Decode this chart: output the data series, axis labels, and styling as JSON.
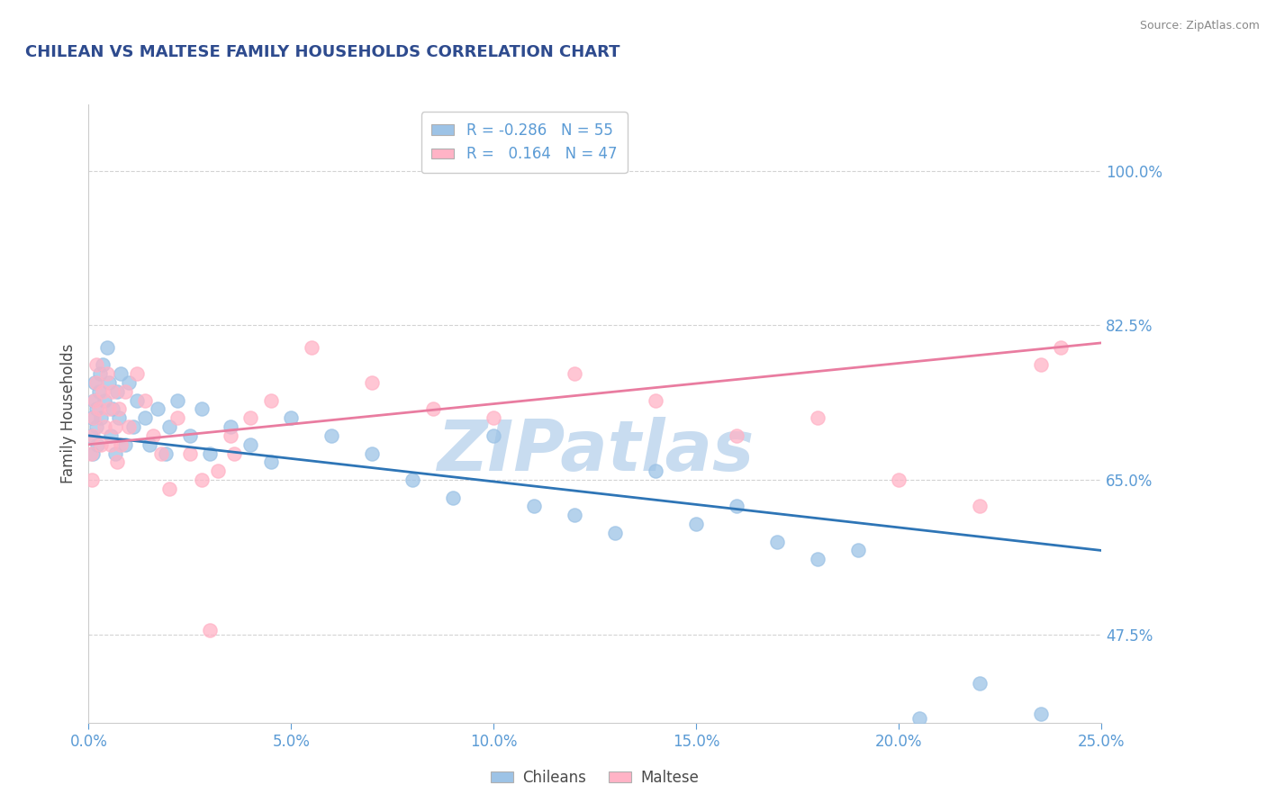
{
  "title": "CHILEAN VS MALTESE FAMILY HOUSEHOLDS CORRELATION CHART",
  "source_text": "Source: ZipAtlas.com",
  "ylabel": "Family Households",
  "xlabel_chileans": "Chileans",
  "xlabel_maltese": "Maltese",
  "legend_blue_R": "-0.286",
  "legend_blue_N": "55",
  "legend_pink_R": "0.164",
  "legend_pink_N": "47",
  "title_color": "#2E4B8E",
  "source_color": "#888888",
  "axis_label_color": "#4a4a4a",
  "tick_color": "#5B9BD5",
  "grid_color": "#c8c8c8",
  "blue_dot_color": "#9DC3E6",
  "pink_dot_color": "#FFB3C6",
  "blue_line_color": "#2E75B6",
  "pink_line_color": "#E97CA0",
  "watermark_color": "#DDEEFF",
  "xlim": [
    0.0,
    25.0
  ],
  "ylim": [
    37.5,
    107.5
  ],
  "yticks": [
    47.5,
    65.0,
    82.5,
    100.0
  ],
  "xticks": [
    0.0,
    5.0,
    10.0,
    15.0,
    20.0,
    25.0
  ],
  "blue_x": [
    0.05,
    0.08,
    0.1,
    0.12,
    0.15,
    0.18,
    0.2,
    0.22,
    0.25,
    0.28,
    0.3,
    0.35,
    0.4,
    0.45,
    0.5,
    0.55,
    0.6,
    0.65,
    0.7,
    0.75,
    0.8,
    0.9,
    1.0,
    1.1,
    1.2,
    1.4,
    1.5,
    1.7,
    1.9,
    2.0,
    2.2,
    2.5,
    2.8,
    3.0,
    3.5,
    4.0,
    4.5,
    5.0,
    6.0,
    7.0,
    8.0,
    9.0,
    10.0,
    11.0,
    12.0,
    13.0,
    14.0,
    15.0,
    16.0,
    17.0,
    18.0,
    19.0,
    20.5,
    22.0,
    23.5
  ],
  "blue_y": [
    70.0,
    72.0,
    68.0,
    74.0,
    76.0,
    71.0,
    73.0,
    69.0,
    75.0,
    77.0,
    72.0,
    78.0,
    74.0,
    80.0,
    76.0,
    70.0,
    73.0,
    68.0,
    75.0,
    72.0,
    77.0,
    69.0,
    76.0,
    71.0,
    74.0,
    72.0,
    69.0,
    73.0,
    68.0,
    71.0,
    74.0,
    70.0,
    73.0,
    68.0,
    71.0,
    69.0,
    67.0,
    72.0,
    70.0,
    68.0,
    65.0,
    63.0,
    70.0,
    62.0,
    61.0,
    59.0,
    66.0,
    60.0,
    62.0,
    58.0,
    56.0,
    57.0,
    38.0,
    42.0,
    38.5
  ],
  "pink_x": [
    0.05,
    0.08,
    0.1,
    0.12,
    0.15,
    0.18,
    0.2,
    0.25,
    0.3,
    0.35,
    0.4,
    0.45,
    0.5,
    0.55,
    0.6,
    0.65,
    0.7,
    0.75,
    0.8,
    0.9,
    1.0,
    1.2,
    1.4,
    1.6,
    1.8,
    2.0,
    2.2,
    2.5,
    2.8,
    3.0,
    3.2,
    3.5,
    3.6,
    4.0,
    4.5,
    5.5,
    7.0,
    8.5,
    10.0,
    12.0,
    14.0,
    16.0,
    18.0,
    20.0,
    22.0,
    23.5,
    24.0
  ],
  "pink_y": [
    68.0,
    65.0,
    70.0,
    72.0,
    74.0,
    76.0,
    78.0,
    73.0,
    69.0,
    75.0,
    71.0,
    77.0,
    73.0,
    69.0,
    75.0,
    71.0,
    67.0,
    73.0,
    69.0,
    75.0,
    71.0,
    77.0,
    74.0,
    70.0,
    68.0,
    64.0,
    72.0,
    68.0,
    65.0,
    48.0,
    66.0,
    70.0,
    68.0,
    72.0,
    74.0,
    80.0,
    76.0,
    73.0,
    72.0,
    77.0,
    74.0,
    70.0,
    72.0,
    65.0,
    62.0,
    78.0,
    80.0
  ]
}
